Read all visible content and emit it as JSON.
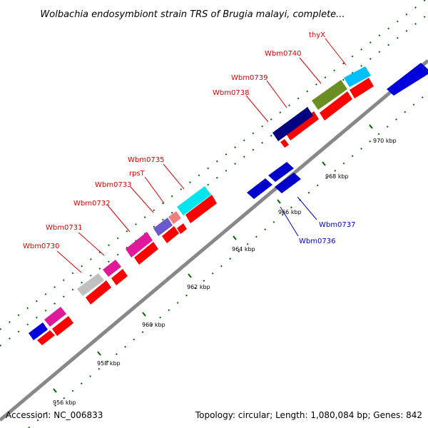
{
  "title": "Wolbachia endosymbiont strain TRS of Brugia malayi, complete...",
  "footer": {
    "accession": "Accession: NC_006833",
    "summary": "Topology: circular; Length: 1,080,084 bp; Genes: 842"
  },
  "colors": {
    "backbone": "#888888",
    "forward_label": "#dd0000",
    "reverse_label": "#0000cc",
    "cds": "#ff0000",
    "tick": "#006600"
  },
  "ticks": [
    "956 kbp",
    "958 kbp",
    "960 kbp",
    "962 kbp",
    "964 kbp",
    "966 kbp",
    "968 kbp",
    "970 kbp"
  ],
  "forward_labels": [
    "Wbm0730",
    "Wbm0731",
    "Wbm0732",
    "Wbm0733",
    "rpsT",
    "Wbm0735",
    "Wbm0738",
    "Wbm0739",
    "Wbm0740",
    "thyX"
  ],
  "reverse_labels": [
    "Wbm0736",
    "Wbm0737"
  ]
}
